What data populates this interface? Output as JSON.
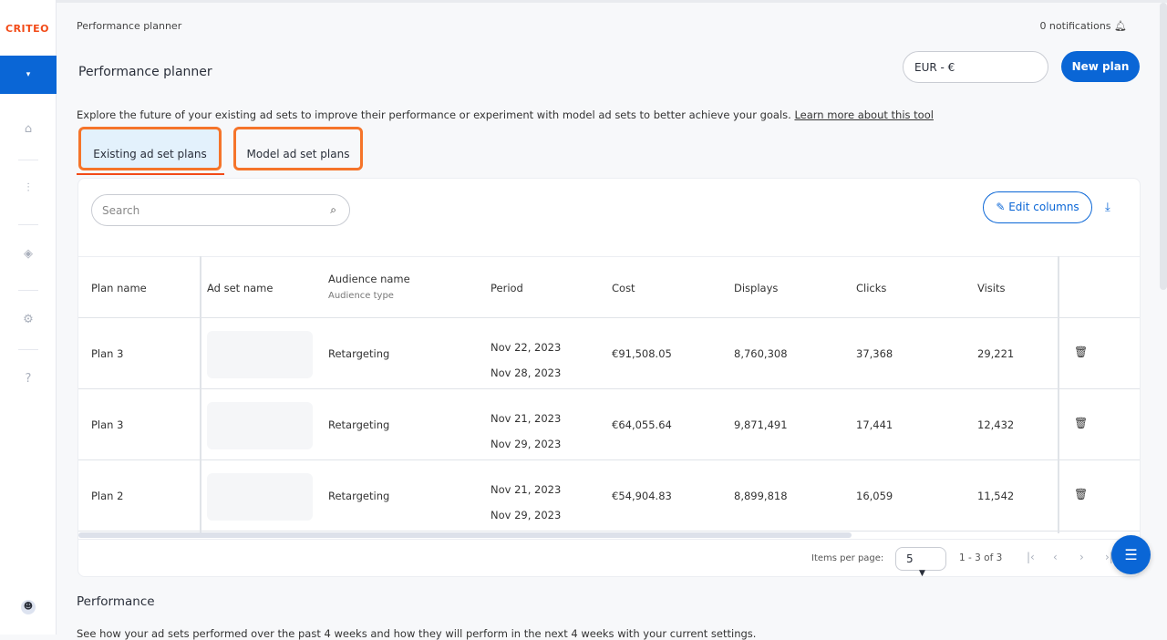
{
  "brand": {
    "logo": "CRITEO",
    "accent": "#0a66d6",
    "tab_highlight": "#f5742a"
  },
  "sidebar": {
    "icons": [
      "home-icon",
      "activity-icon",
      "layers-icon",
      "gear-icon",
      "help-icon"
    ],
    "toggle": "▾"
  },
  "header": {
    "breadcrumb": "Performance planner",
    "notifications": "0 notifications",
    "title": "Performance planner",
    "currency": "EUR - €",
    "new_plan": "New plan"
  },
  "description": {
    "text": "Explore the future of your existing ad sets to improve their performance or experiment with model ad sets to better achieve your goals.",
    "link": "Learn more about this tool"
  },
  "tabs": [
    {
      "label": "Existing ad set plans",
      "active": true
    },
    {
      "label": "Model ad set plans",
      "active": false
    }
  ],
  "toolbar": {
    "search_placeholder": "Search",
    "edit_columns": "Edit columns"
  },
  "table": {
    "columns": {
      "plan": "Plan name",
      "adset": "Ad set name",
      "audience": "Audience name",
      "audience_sub": "Audience type",
      "period": "Period",
      "cost": "Cost",
      "displays": "Displays",
      "clicks": "Clicks",
      "visits": "Visits"
    },
    "rows": [
      {
        "plan": "Plan 3",
        "audience": "Retargeting",
        "start": "Nov 22, 2023",
        "end": "Nov 28, 2023",
        "cost": "€91,508.05",
        "displays": "8,760,308",
        "clicks": "37,368",
        "visits": "29,221"
      },
      {
        "plan": "Plan 3",
        "audience": "Retargeting",
        "start": "Nov 21, 2023",
        "end": "Nov 29, 2023",
        "cost": "€64,055.64",
        "displays": "9,871,491",
        "clicks": "17,441",
        "visits": "12,432"
      },
      {
        "plan": "Plan 2",
        "audience": "Retargeting",
        "start": "Nov 21, 2023",
        "end": "Nov 29, 2023",
        "cost": "€54,904.83",
        "displays": "8,899,818",
        "clicks": "16,059",
        "visits": "11,542"
      }
    ]
  },
  "pagination": {
    "items_per_page_label": "Items per page:",
    "items_per_page": "5",
    "range": "1 - 3 of 3"
  },
  "performance": {
    "title": "Performance",
    "desc": "See how your ad sets performed over the past 4 weeks and how they will perform in the next 4 weeks with your current settings."
  }
}
